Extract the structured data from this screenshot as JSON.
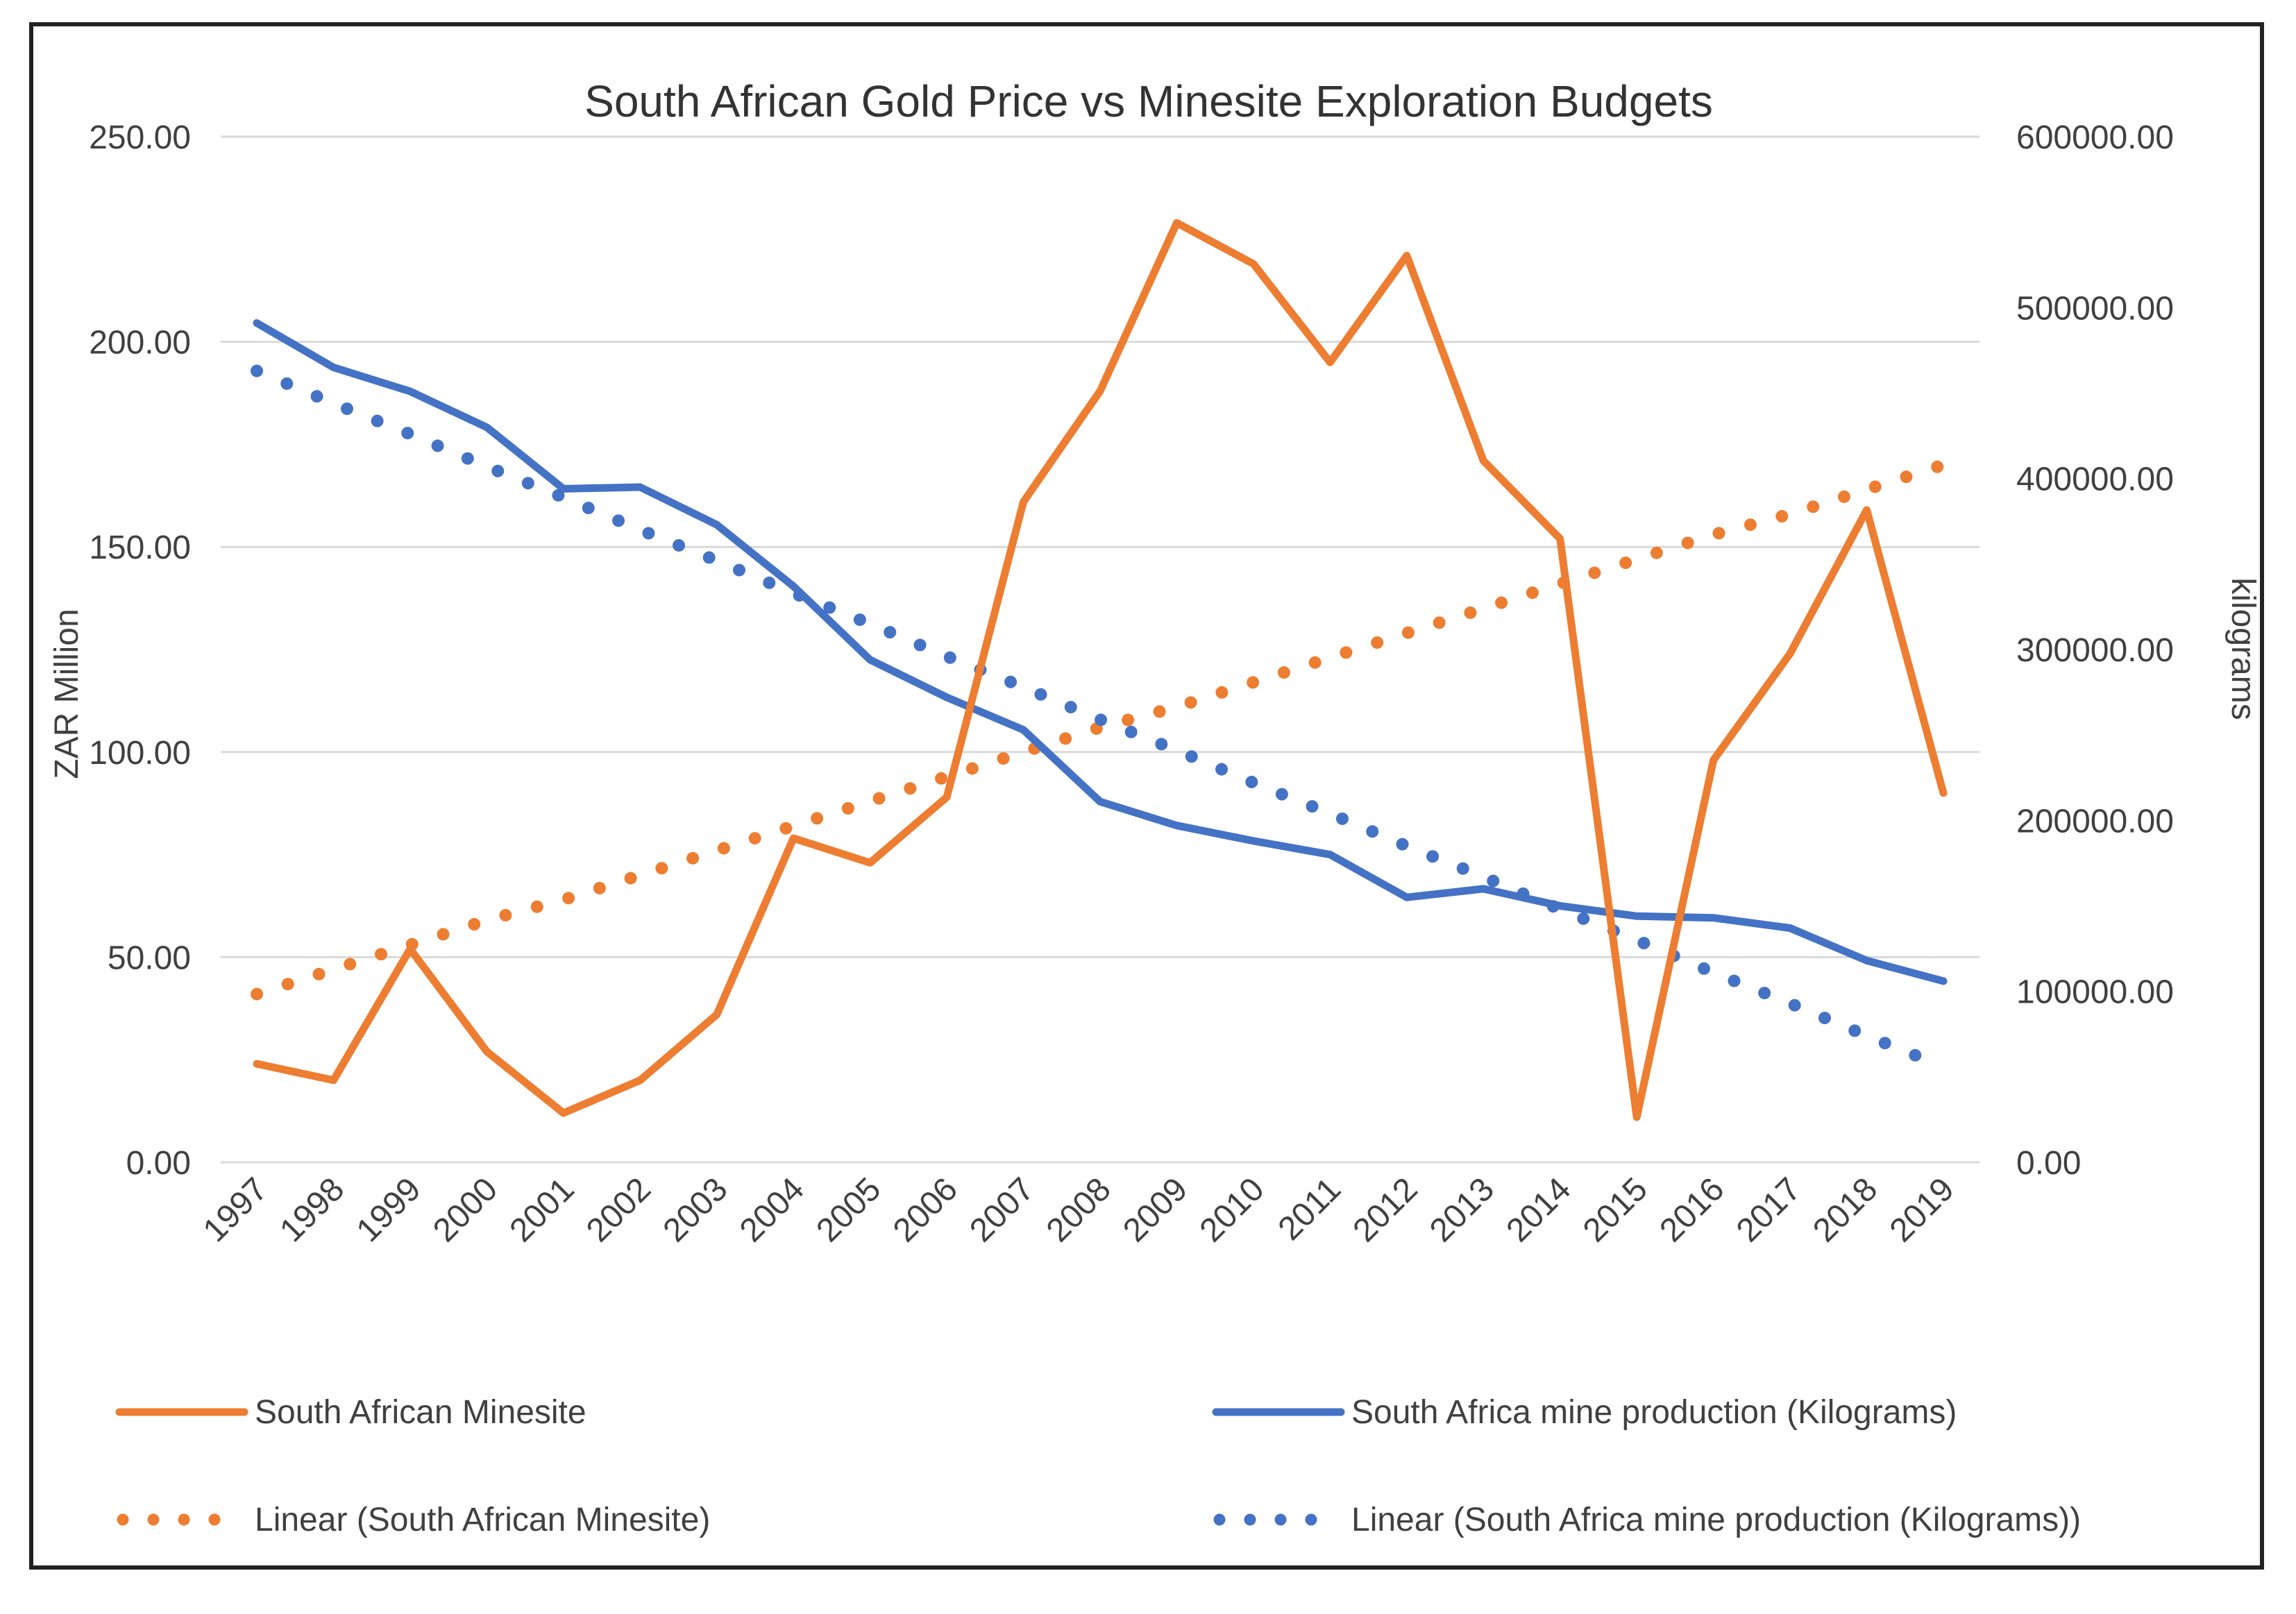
{
  "chart_data": {
    "type": "line",
    "title": "South African Gold Price vs Minesite Exploration Budgets",
    "xlabel": "",
    "ylabel": "ZAR Million",
    "y2label": "kilograms",
    "ylim": [
      0,
      250
    ],
    "y2lim": [
      0,
      600000
    ],
    "yticks": [
      "0.00",
      "50.00",
      "100.00",
      "150.00",
      "200.00",
      "250.00"
    ],
    "y2ticks": [
      "0.00",
      "100000.00",
      "200000.00",
      "300000.00",
      "400000.00",
      "500000.00",
      "600000.00"
    ],
    "categories": [
      "1997",
      "1998",
      "1999",
      "2000",
      "2001",
      "2002",
      "2003",
      "2004",
      "2005",
      "2006",
      "2007",
      "2008",
      "2009",
      "2010",
      "2011",
      "2012",
      "2013",
      "2014",
      "2015",
      "2016",
      "2017",
      "2018",
      "2019"
    ],
    "series": [
      {
        "name": "South African Minesite",
        "axis": "left",
        "color": "#ED7D31",
        "style": "solid",
        "values": [
          24,
          20,
          52,
          27,
          12,
          20,
          36,
          79,
          73,
          89,
          161,
          188,
          229,
          219,
          195,
          221,
          171,
          152,
          11,
          98,
          124,
          159,
          90
        ]
      },
      {
        "name": "South Africa mine production (Kilograms)",
        "axis": "right",
        "color": "#4472C4",
        "style": "solid",
        "values": [
          491000,
          465000,
          451000,
          430000,
          394000,
          395000,
          373000,
          337000,
          294000,
          272000,
          253000,
          211000,
          197000,
          188000,
          180000,
          155000,
          160000,
          150000,
          144000,
          143000,
          137000,
          118000,
          106000
        ]
      },
      {
        "name": "Linear (South African Minesite)",
        "axis": "left",
        "color": "#ED7D31",
        "style": "dotted",
        "values": [
          41,
          47,
          53,
          59,
          64,
          70,
          76,
          82,
          88,
          94,
          100,
          106,
          111,
          117,
          123,
          129,
          135,
          141,
          147,
          153,
          158,
          164,
          170
        ]
      },
      {
        "name": "Linear (South Africa mine production (Kilograms))",
        "axis": "right",
        "color": "#4472C4",
        "style": "dotted",
        "values": [
          463000,
          444000,
          426000,
          407000,
          389000,
          370000,
          352000,
          333000,
          315000,
          296000,
          278000,
          259000,
          241000,
          222000,
          204000,
          185000,
          167000,
          148000,
          130000,
          111000,
          93000,
          74000,
          56000
        ]
      }
    ],
    "legend": [
      "South African Minesite",
      "South Africa mine production (Kilograms)",
      "Linear (South African Minesite)",
      "Linear (South Africa mine production (Kilograms))"
    ],
    "legend_position": "bottom",
    "grid": true
  }
}
